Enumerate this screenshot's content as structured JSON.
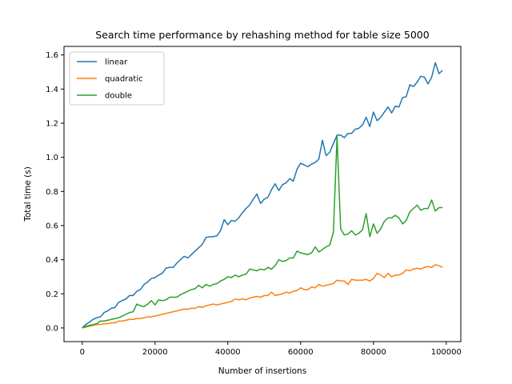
{
  "chart_data": {
    "type": "line",
    "title": "Search time performance by rehashing method for table size 5000",
    "xlabel": "Number of insertions",
    "ylabel": "Total time (s)",
    "xlim": [
      -5000,
      104000
    ],
    "ylim": [
      -0.08,
      1.65
    ],
    "xticks": [
      0,
      20000,
      40000,
      60000,
      80000,
      100000
    ],
    "yticks": [
      0.0,
      0.2,
      0.4,
      0.6,
      0.8,
      1.0,
      1.2,
      1.4,
      1.6
    ],
    "xtick_labels": [
      "0",
      "20000",
      "40000",
      "60000",
      "80000",
      "100000"
    ],
    "ytick_labels": [
      "0.0",
      "0.2",
      "0.4",
      "0.6",
      "0.8",
      "1.0",
      "1.2",
      "1.4",
      "1.6"
    ],
    "legend_position": "upper-left",
    "grid": false,
    "x": [
      0,
      1000,
      2000,
      3000,
      4000,
      5000,
      6000,
      7000,
      8000,
      9000,
      10000,
      11000,
      12000,
      13000,
      14000,
      15000,
      16000,
      17000,
      18000,
      19000,
      20000,
      21000,
      22000,
      23000,
      24000,
      25000,
      26000,
      27000,
      28000,
      29000,
      30000,
      31000,
      32000,
      33000,
      34000,
      35000,
      36000,
      37000,
      38000,
      39000,
      40000,
      41000,
      42000,
      43000,
      44000,
      45000,
      46000,
      47000,
      48000,
      49000,
      50000,
      51000,
      52000,
      53000,
      54000,
      55000,
      56000,
      57000,
      58000,
      59000,
      60000,
      61000,
      62000,
      63000,
      64000,
      65000,
      66000,
      67000,
      68000,
      69000,
      70000,
      71000,
      72000,
      73000,
      74000,
      75000,
      76000,
      77000,
      78000,
      79000,
      80000,
      81000,
      82000,
      83000,
      84000,
      85000,
      86000,
      87000,
      88000,
      89000,
      90000,
      91000,
      92000,
      93000,
      94000,
      95000,
      96000,
      97000,
      98000,
      99000
    ],
    "series": [
      {
        "name": "linear",
        "color": "#1f77b4",
        "values": [
          0.0,
          0.02,
          0.035,
          0.05,
          0.06,
          0.065,
          0.09,
          0.1,
          0.115,
          0.12,
          0.15,
          0.16,
          0.17,
          0.19,
          0.19,
          0.215,
          0.225,
          0.255,
          0.27,
          0.29,
          0.295,
          0.31,
          0.32,
          0.35,
          0.355,
          0.355,
          0.38,
          0.4,
          0.42,
          0.41,
          0.43,
          0.45,
          0.47,
          0.49,
          0.53,
          0.535,
          0.535,
          0.54,
          0.57,
          0.635,
          0.605,
          0.63,
          0.625,
          0.645,
          0.675,
          0.7,
          0.72,
          0.755,
          0.785,
          0.73,
          0.755,
          0.765,
          0.81,
          0.845,
          0.805,
          0.84,
          0.85,
          0.875,
          0.86,
          0.93,
          0.965,
          0.955,
          0.945,
          0.96,
          0.97,
          0.99,
          1.1,
          1.01,
          1.03,
          1.08,
          1.13,
          1.13,
          1.115,
          1.14,
          1.14,
          1.165,
          1.17,
          1.19,
          1.235,
          1.18,
          1.265,
          1.215,
          1.235,
          1.265,
          1.295,
          1.26,
          1.3,
          1.295,
          1.35,
          1.355,
          1.425,
          1.415,
          1.44,
          1.475,
          1.47,
          1.43,
          1.47,
          1.555,
          1.49,
          1.51
        ]
      },
      {
        "name": "quadratic",
        "color": "#ff7f0e",
        "values": [
          0.0,
          0.005,
          0.01,
          0.015,
          0.02,
          0.02,
          0.025,
          0.025,
          0.03,
          0.03,
          0.04,
          0.04,
          0.045,
          0.05,
          0.05,
          0.055,
          0.055,
          0.06,
          0.065,
          0.065,
          0.07,
          0.075,
          0.08,
          0.085,
          0.09,
          0.095,
          0.1,
          0.105,
          0.11,
          0.11,
          0.115,
          0.115,
          0.125,
          0.12,
          0.13,
          0.135,
          0.14,
          0.135,
          0.14,
          0.145,
          0.15,
          0.155,
          0.17,
          0.165,
          0.17,
          0.165,
          0.175,
          0.18,
          0.185,
          0.18,
          0.19,
          0.19,
          0.21,
          0.19,
          0.195,
          0.2,
          0.21,
          0.205,
          0.215,
          0.22,
          0.235,
          0.225,
          0.225,
          0.24,
          0.235,
          0.255,
          0.245,
          0.25,
          0.255,
          0.26,
          0.28,
          0.275,
          0.275,
          0.255,
          0.285,
          0.28,
          0.28,
          0.28,
          0.285,
          0.275,
          0.29,
          0.32,
          0.31,
          0.295,
          0.32,
          0.3,
          0.31,
          0.31,
          0.32,
          0.34,
          0.335,
          0.345,
          0.35,
          0.345,
          0.355,
          0.36,
          0.355,
          0.37,
          0.365,
          0.355
        ]
      },
      {
        "name": "double",
        "color": "#2ca02c",
        "values": [
          0.0,
          0.01,
          0.015,
          0.02,
          0.025,
          0.04,
          0.04,
          0.045,
          0.05,
          0.055,
          0.06,
          0.07,
          0.08,
          0.09,
          0.095,
          0.14,
          0.13,
          0.125,
          0.14,
          0.16,
          0.135,
          0.165,
          0.16,
          0.165,
          0.18,
          0.18,
          0.18,
          0.195,
          0.205,
          0.215,
          0.225,
          0.23,
          0.25,
          0.235,
          0.255,
          0.245,
          0.255,
          0.26,
          0.275,
          0.285,
          0.3,
          0.295,
          0.31,
          0.3,
          0.31,
          0.315,
          0.345,
          0.34,
          0.335,
          0.345,
          0.34,
          0.355,
          0.345,
          0.365,
          0.4,
          0.39,
          0.395,
          0.41,
          0.41,
          0.45,
          0.44,
          0.435,
          0.43,
          0.44,
          0.475,
          0.445,
          0.46,
          0.475,
          0.485,
          0.56,
          1.12,
          0.58,
          0.545,
          0.55,
          0.57,
          0.545,
          0.555,
          0.575,
          0.67,
          0.535,
          0.61,
          0.555,
          0.58,
          0.625,
          0.645,
          0.645,
          0.66,
          0.645,
          0.61,
          0.63,
          0.68,
          0.7,
          0.72,
          0.69,
          0.7,
          0.7,
          0.75,
          0.685,
          0.705,
          0.705
        ]
      }
    ]
  }
}
